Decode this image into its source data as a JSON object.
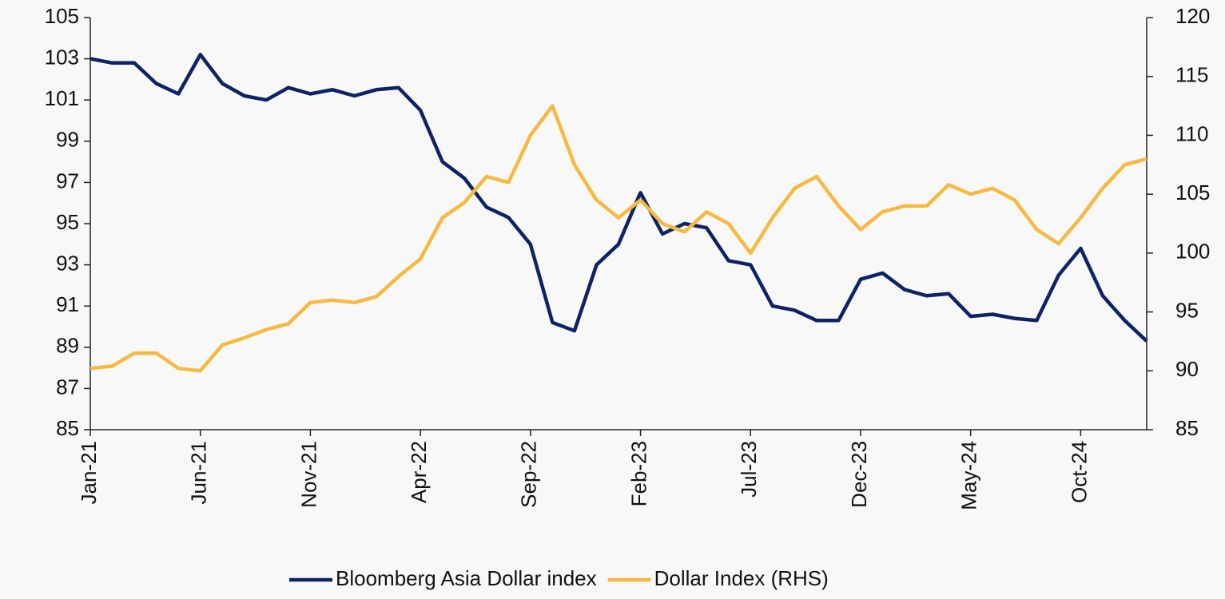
{
  "chart_data": {
    "type": "line",
    "categories": [
      "Jan-21",
      null,
      null,
      null,
      null,
      "Jun-21",
      null,
      null,
      null,
      null,
      "Nov-21",
      null,
      null,
      null,
      null,
      "Apr-22",
      null,
      null,
      null,
      null,
      "Sep-22",
      null,
      null,
      null,
      null,
      "Feb-23",
      null,
      null,
      null,
      null,
      "Jul-23",
      null,
      null,
      null,
      null,
      "Dec-23",
      null,
      null,
      null,
      null,
      "May-24",
      null,
      null,
      null,
      null,
      "Oct-24",
      null,
      null,
      null
    ],
    "series": [
      {
        "name": "Bloomberg Asia Dollar index",
        "color": "#0d2366",
        "axis": "y",
        "values": [
          103,
          102.8,
          102.8,
          101.8,
          101.3,
          103.2,
          101.8,
          101.2,
          101.0,
          101.6,
          101.3,
          101.5,
          101.2,
          101.5,
          101.6,
          100.5,
          98.0,
          97.2,
          95.8,
          95.3,
          94.0,
          90.2,
          89.8,
          93.0,
          94.0,
          96.5,
          94.5,
          95.0,
          94.8,
          93.2,
          93.0,
          91.0,
          90.8,
          90.3,
          90.3,
          92.3,
          92.6,
          91.8,
          91.5,
          91.6,
          90.5,
          90.6,
          90.4,
          90.3,
          92.5,
          93.8,
          91.5,
          90.3,
          89.3
        ]
      },
      {
        "name": "Dollar Index (RHS)",
        "color": "#f7b940",
        "axis": "y2",
        "values": [
          90.2,
          90.4,
          91.5,
          91.5,
          90.2,
          90.0,
          92.2,
          92.8,
          93.5,
          94.0,
          95.8,
          96.0,
          95.8,
          96.3,
          98.0,
          99.5,
          103.0,
          104.3,
          106.5,
          106.0,
          110.0,
          112.5,
          107.5,
          104.5,
          103.0,
          104.5,
          102.5,
          101.8,
          103.5,
          102.5,
          100.0,
          103.0,
          105.5,
          106.5,
          104.0,
          102.0,
          103.5,
          104.0,
          104.0,
          105.8,
          105.0,
          105.5,
          104.5,
          102.0,
          100.8,
          103.0,
          105.5,
          107.5,
          108.0
        ]
      }
    ],
    "ylim": [
      85,
      105
    ],
    "yticks": [
      85,
      87,
      89,
      91,
      93,
      95,
      97,
      99,
      101,
      103,
      105
    ],
    "y2lim": [
      85,
      120
    ],
    "y2ticks": [
      85,
      90,
      95,
      100,
      105,
      110,
      115,
      120
    ],
    "legend": "bottom"
  }
}
